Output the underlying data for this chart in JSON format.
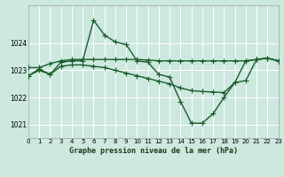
{
  "title": "Graphe pression niveau de la mer (hPa)",
  "background_color": "#cce8df",
  "plot_bg_color": "#cce8df",
  "grid_color": "#ffffff",
  "line_color": "#1a5c2a",
  "series1": {
    "x": [
      0,
      1,
      2,
      3,
      4,
      5,
      6,
      7,
      8,
      9,
      10,
      11,
      12,
      13,
      14,
      15,
      16,
      17,
      18,
      19,
      20,
      21,
      22,
      23
    ],
    "y": [
      1022.8,
      1023.05,
      1022.85,
      1023.3,
      1023.35,
      1023.35,
      1024.85,
      1024.3,
      1024.05,
      1023.95,
      1023.35,
      1023.3,
      1022.85,
      1022.75,
      1021.85,
      1021.05,
      1021.05,
      1021.4,
      1022.0,
      1022.55,
      1023.35,
      1023.4,
      1023.45,
      1023.35
    ]
  },
  "series2": {
    "x": [
      0,
      1,
      2,
      3,
      4,
      5,
      6,
      7,
      8,
      9,
      10,
      11,
      12,
      13,
      14,
      15,
      16,
      17,
      18,
      19,
      20,
      21,
      22,
      23
    ],
    "y": [
      1023.1,
      1023.1,
      1023.25,
      1023.35,
      1023.4,
      1023.4,
      1023.4,
      1023.4,
      1023.4,
      1023.4,
      1023.4,
      1023.38,
      1023.35,
      1023.35,
      1023.35,
      1023.35,
      1023.35,
      1023.35,
      1023.35,
      1023.35,
      1023.35,
      1023.4,
      1023.45,
      1023.35
    ]
  },
  "series3": {
    "x": [
      0,
      1,
      2,
      3,
      4,
      5,
      6,
      7,
      8,
      9,
      10,
      11,
      12,
      13,
      14,
      15,
      16,
      17,
      18,
      19,
      20,
      21,
      22,
      23
    ],
    "y": [
      1022.8,
      1023.0,
      1022.85,
      1023.15,
      1023.2,
      1023.2,
      1023.15,
      1023.1,
      1023.0,
      1022.9,
      1022.8,
      1022.7,
      1022.6,
      1022.5,
      1022.35,
      1022.25,
      1022.22,
      1022.2,
      1022.18,
      1022.55,
      1022.62,
      1023.4,
      1023.45,
      1023.35
    ]
  },
  "xlim": [
    0,
    23
  ],
  "ylim": [
    1020.5,
    1025.4
  ],
  "yticks": [
    1021,
    1022,
    1023,
    1024
  ],
  "xticks": [
    0,
    1,
    2,
    3,
    4,
    5,
    6,
    7,
    8,
    9,
    10,
    11,
    12,
    13,
    14,
    15,
    16,
    17,
    18,
    19,
    20,
    21,
    22,
    23
  ],
  "marker": "+",
  "markersize": 4,
  "linewidth": 1.0,
  "tick_fontsize": 5,
  "title_fontsize": 6
}
